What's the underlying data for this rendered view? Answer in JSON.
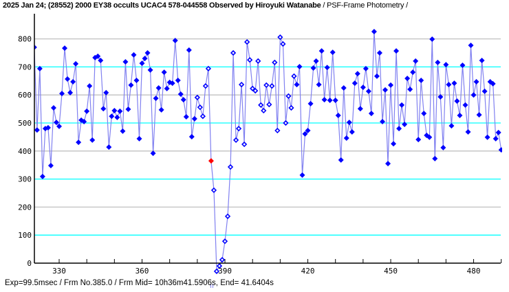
{
  "title": {
    "main": "2025 Jan 24; (28552) 2000 EY38 occults UCAC4 578-044558 Observed by Hiroyuki Watanabe",
    "suffix": " / PSF-Frame Photometry /"
  },
  "footer": "Exp=99.5msec / Frm No.385.0 / Frm Mid= 10h36m41.5906s,  End= 41.6404s",
  "chart_data": {
    "type": "line",
    "title": "2025 Jan 24; (28552) 2000 EY38 occults UCAC4 578-044558 Observed by Hiroyuki Watanabe / PSF-Frame Photometry /",
    "xlabel": "",
    "ylabel": "",
    "xlim": [
      321,
      490
    ],
    "ylim": [
      0,
      860
    ],
    "xticks": [
      330,
      360,
      390,
      420,
      450,
      480
    ],
    "xminor_step": 10,
    "yticks": [
      0,
      100,
      200,
      300,
      400,
      500,
      600,
      700,
      800
    ],
    "grid": true,
    "x_start": 321,
    "values": [
      770,
      475,
      694,
      309,
      480,
      483,
      348,
      554,
      502,
      488,
      605,
      767,
      657,
      608,
      647,
      711,
      431,
      510,
      505,
      542,
      632,
      439,
      733,
      738,
      723,
      551,
      608,
      414,
      524,
      544,
      520,
      542,
      471,
      718,
      549,
      635,
      743,
      652,
      444,
      713,
      730,
      750,
      689,
      392,
      588,
      625,
      547,
      681,
      623,
      645,
      642,
      794,
      652,
      603,
      583,
      522,
      760,
      451,
      515,
      591,
      556,
      524,
      632,
      694,
      365,
      260,
      -29,
      -10,
      12,
      78,
      167,
      343,
      750,
      439,
      480,
      637,
      424,
      789,
      725,
      623,
      615,
      721,
      564,
      544,
      635,
      566,
      632,
      716,
      473,
      806,
      782,
      500,
      596,
      554,
      667,
      637,
      701,
      314,
      461,
      473,
      569,
      696,
      721,
      637,
      757,
      583,
      698,
      581,
      752,
      581,
      527,
      368,
      625,
      446,
      502,
      468,
      642,
      676,
      551,
      627,
      694,
      613,
      534,
      826,
      667,
      750,
      505,
      618,
      355,
      635,
      426,
      757,
      480,
      564,
      495,
      659,
      620,
      681,
      721,
      441,
      652,
      534,
      456,
      449,
      799,
      373,
      716,
      593,
      412,
      708,
      637,
      490,
      642,
      578,
      527,
      706,
      564,
      468,
      777,
      600,
      647,
      529,
      723,
      613,
      449,
      647,
      640,
      444,
      466,
      404
    ],
    "hollow_frame_range": [
      380,
      415
    ],
    "highlight_frame": 385,
    "colors": {
      "point": "#0000ff",
      "line": "#8080f0",
      "highlight": "#ff0000",
      "grid_odd": "#00ffff",
      "grid_even": "#c0c0c0"
    }
  }
}
